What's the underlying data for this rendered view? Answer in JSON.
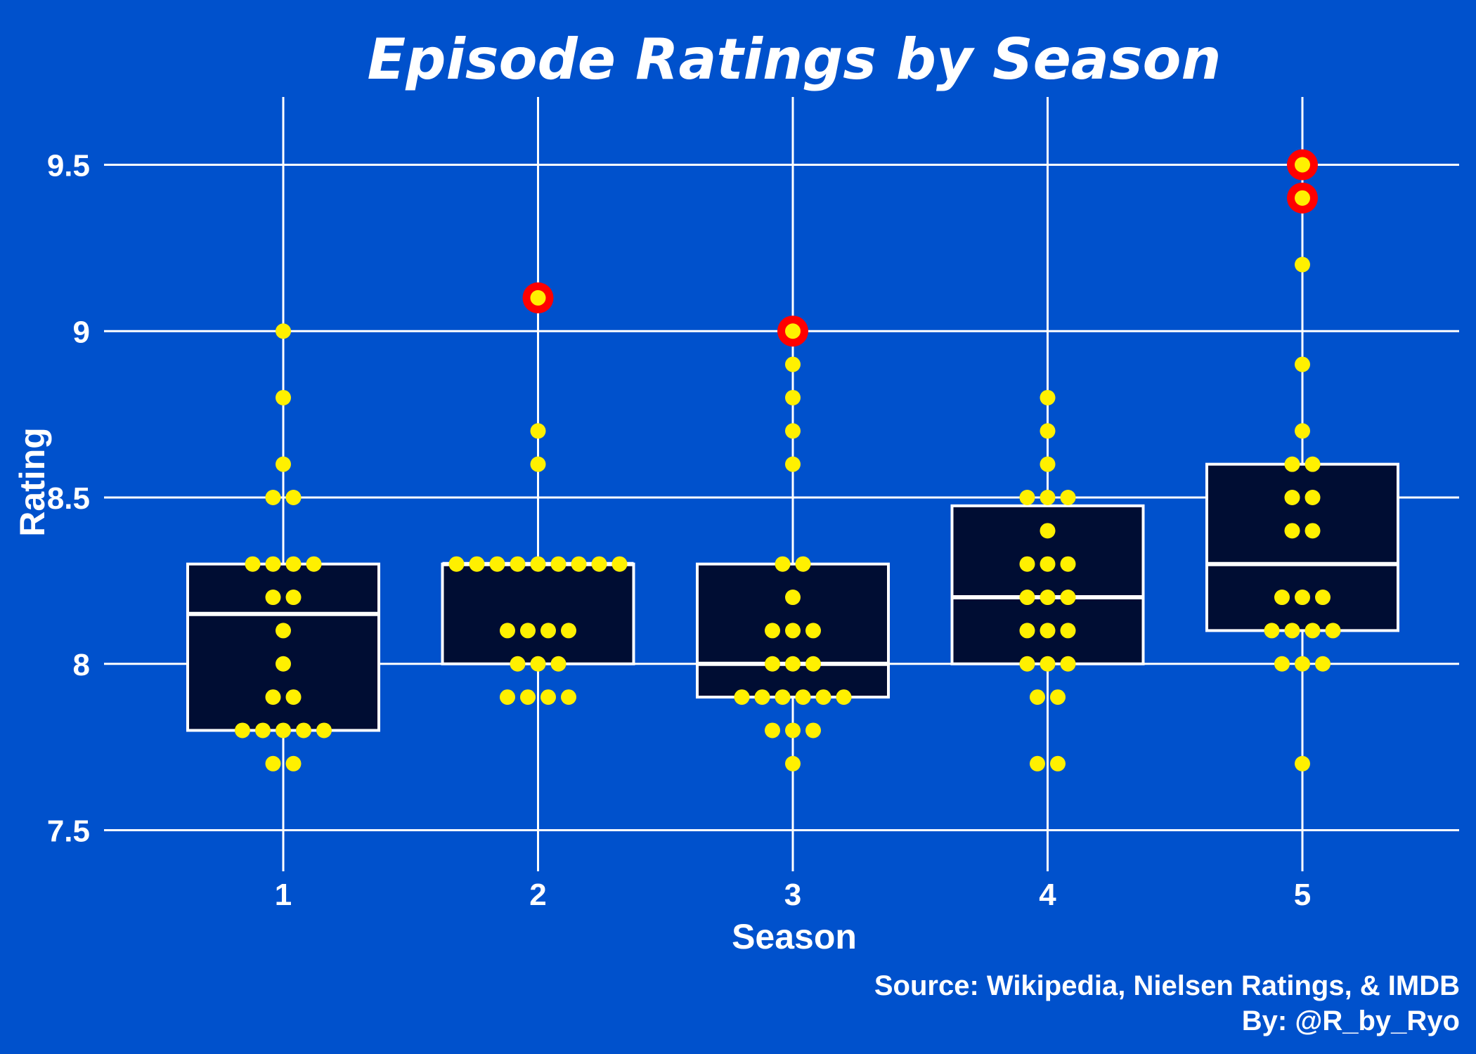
{
  "chart_data": {
    "type": "box",
    "title": "Episode Ratings by Season",
    "xlabel": "Season",
    "ylabel": "Rating",
    "ylim": [
      7.3,
      9.7
    ],
    "yticks": [
      7.5,
      8,
      8.5,
      9,
      9.5
    ],
    "ytick_labels": [
      "7.5",
      "8",
      "8.5",
      "9",
      "9.5"
    ],
    "categories": [
      "1",
      "2",
      "3",
      "4",
      "5"
    ],
    "grid": true,
    "legend": "none",
    "boxes": [
      {
        "season": "1",
        "q1": 7.8,
        "median": 8.15,
        "q3": 8.3,
        "whisker_low": 7.7,
        "whisker_high": 9.0
      },
      {
        "season": "2",
        "q1": 8.0,
        "median": 8.3,
        "q3": 8.3,
        "whisker_low": 7.9,
        "whisker_high": 8.7
      },
      {
        "season": "3",
        "q1": 7.9,
        "median": 8.0,
        "q3": 8.3,
        "whisker_low": 7.7,
        "whisker_high": 8.9
      },
      {
        "season": "4",
        "q1": 8.0,
        "median": 8.2,
        "q3": 8.475,
        "whisker_low": 7.7,
        "whisker_high": 8.8
      },
      {
        "season": "5",
        "q1": 8.1,
        "median": 8.3,
        "q3": 8.6,
        "whisker_low": 7.7,
        "whisker_high": 9.2
      }
    ],
    "points": [
      {
        "season": "1",
        "ratings": [
          7.7,
          7.7,
          7.8,
          7.8,
          7.8,
          7.8,
          7.8,
          7.9,
          7.9,
          8.0,
          8.1,
          8.2,
          8.2,
          8.3,
          8.3,
          8.3,
          8.3,
          8.5,
          8.5,
          8.6,
          8.8,
          9.0
        ]
      },
      {
        "season": "2",
        "ratings": [
          7.9,
          7.9,
          7.9,
          7.9,
          8.0,
          8.0,
          8.0,
          8.1,
          8.1,
          8.1,
          8.1,
          8.3,
          8.3,
          8.3,
          8.3,
          8.3,
          8.3,
          8.3,
          8.3,
          8.3,
          8.6,
          8.7,
          9.1
        ]
      },
      {
        "season": "3",
        "ratings": [
          7.7,
          7.8,
          7.8,
          7.8,
          7.9,
          7.9,
          7.9,
          7.9,
          7.9,
          7.9,
          8.0,
          8.0,
          8.0,
          8.1,
          8.1,
          8.1,
          8.2,
          8.3,
          8.3,
          8.6,
          8.7,
          8.8,
          8.9,
          9.0
        ]
      },
      {
        "season": "4",
        "ratings": [
          7.7,
          7.7,
          7.9,
          7.9,
          8.0,
          8.0,
          8.0,
          8.1,
          8.1,
          8.1,
          8.2,
          8.2,
          8.2,
          8.3,
          8.3,
          8.3,
          8.4,
          8.5,
          8.5,
          8.5,
          8.6,
          8.7,
          8.8
        ]
      },
      {
        "season": "5",
        "ratings": [
          7.7,
          8.0,
          8.0,
          8.0,
          8.1,
          8.1,
          8.1,
          8.1,
          8.2,
          8.2,
          8.2,
          8.4,
          8.4,
          8.5,
          8.5,
          8.6,
          8.6,
          8.7,
          8.9,
          9.2,
          9.4,
          9.5
        ]
      }
    ],
    "highlighted": [
      {
        "season": "2",
        "rating": 9.1
      },
      {
        "season": "3",
        "rating": 9.0
      },
      {
        "season": "5",
        "rating": 9.4
      },
      {
        "season": "5",
        "rating": 9.5
      }
    ],
    "caption": [
      "Source: Wikipedia, Nielsen Ratings, & IMDB",
      "By: @R_by_Ryo"
    ]
  },
  "colors": {
    "background": "#0051CC",
    "box_fill": "#000D33",
    "box_line": "#FFFFFF",
    "grid": "#FFFFFF",
    "point": "#FFF000",
    "highlight_ring": "#FF0000",
    "text": "#FFFFFF"
  }
}
